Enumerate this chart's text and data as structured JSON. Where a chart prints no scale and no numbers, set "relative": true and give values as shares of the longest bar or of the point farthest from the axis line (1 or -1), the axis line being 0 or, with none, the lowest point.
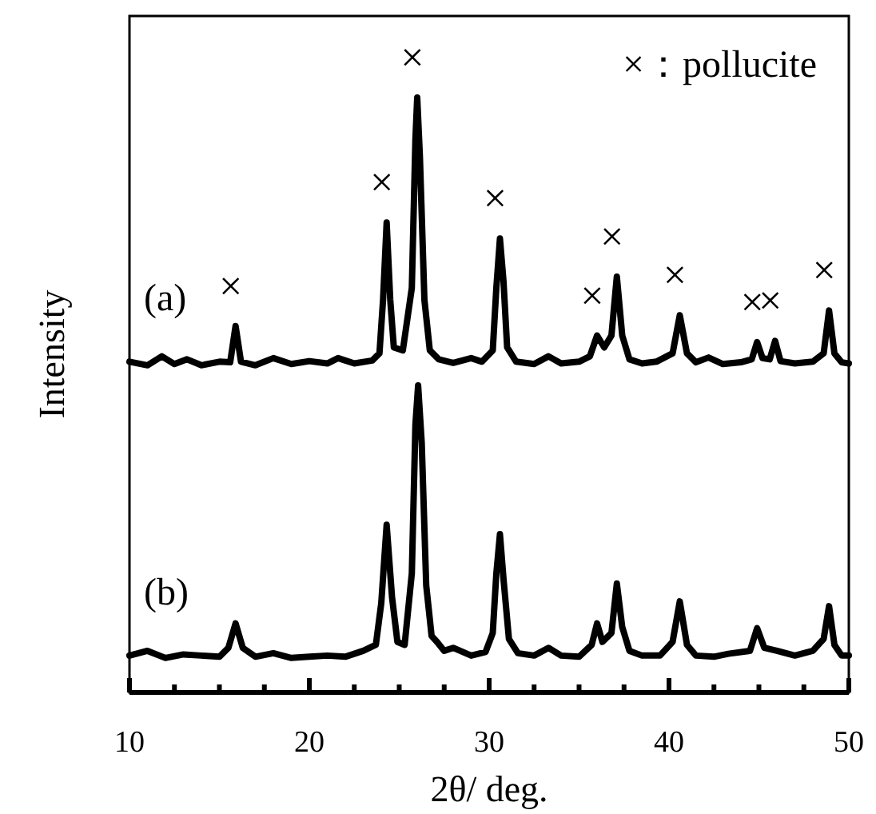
{
  "chart_data": {
    "type": "line",
    "relative": true,
    "xlabel": "2θ/ deg.",
    "ylabel": "Intensity",
    "xlim": [
      10,
      50
    ],
    "xticks": [
      10,
      {
        "value": 12.5,
        "label": null
      },
      {
        "value": 15,
        "label": null
      },
      {
        "value": 17.5,
        "label": null
      },
      20,
      {
        "value": 22.5,
        "label": null
      },
      {
        "value": 25,
        "label": null
      },
      {
        "value": 27.5,
        "label": null
      },
      30,
      {
        "value": 32.5,
        "label": null
      },
      {
        "value": 35,
        "label": null
      },
      {
        "value": 37.5,
        "label": null
      },
      40,
      {
        "value": 42.5,
        "label": null
      },
      {
        "value": 45,
        "label": null
      },
      {
        "value": 47.5,
        "label": null
      },
      50
    ],
    "series": [
      {
        "name": "(a)",
        "color": "#000000",
        "x": [
          10,
          11,
          11.8,
          12.5,
          13.2,
          14,
          15,
          15.6,
          15.9,
          16.2,
          17,
          18,
          19,
          20,
          21,
          21.6,
          22.5,
          23.5,
          23.9,
          24.1,
          24.3,
          24.5,
          24.7,
          25.2,
          25.7,
          25.9,
          26.0,
          26.15,
          26.4,
          26.7,
          27.2,
          28,
          29,
          29.6,
          30.2,
          30.4,
          30.6,
          30.8,
          31.0,
          31.5,
          32.5,
          33.3,
          34,
          35,
          35.6,
          36.0,
          36.4,
          36.8,
          37.1,
          37.4,
          37.8,
          38.5,
          39.3,
          40.2,
          40.6,
          41.0,
          41.5,
          42.2,
          43,
          44,
          44.6,
          44.9,
          45.2,
          45.6,
          45.9,
          46.2,
          47,
          48,
          48.6,
          48.9,
          49.2,
          49.6,
          50
        ],
        "values": [
          0.556,
          0.55,
          0.565,
          0.552,
          0.56,
          0.55,
          0.556,
          0.555,
          0.616,
          0.556,
          0.55,
          0.562,
          0.552,
          0.557,
          0.553,
          0.562,
          0.553,
          0.558,
          0.57,
          0.66,
          0.79,
          0.66,
          0.58,
          0.575,
          0.68,
          0.93,
          1.0,
          0.9,
          0.66,
          0.575,
          0.56,
          0.554,
          0.562,
          0.556,
          0.575,
          0.68,
          0.763,
          0.69,
          0.58,
          0.556,
          0.552,
          0.565,
          0.553,
          0.556,
          0.565,
          0.6,
          0.58,
          0.6,
          0.699,
          0.6,
          0.56,
          0.553,
          0.556,
          0.57,
          0.634,
          0.57,
          0.555,
          0.563,
          0.552,
          0.555,
          0.56,
          0.589,
          0.562,
          0.56,
          0.591,
          0.557,
          0.553,
          0.556,
          0.57,
          0.642,
          0.57,
          0.555,
          0.553
        ]
      },
      {
        "name": "(b)",
        "color": "#000000",
        "x": [
          10,
          11,
          12,
          13,
          14,
          15,
          15.5,
          15.9,
          16.3,
          17,
          18,
          19,
          20,
          21,
          22,
          23,
          23.7,
          24.0,
          24.3,
          24.6,
          24.9,
          25.3,
          25.7,
          25.9,
          26.05,
          26.25,
          26.5,
          26.8,
          27.1,
          27.5,
          28,
          29,
          29.8,
          30.2,
          30.4,
          30.6,
          30.8,
          31.1,
          31.6,
          32.5,
          33.3,
          34,
          35,
          35.7,
          36.0,
          36.3,
          36.8,
          37.1,
          37.4,
          37.8,
          38.5,
          39.5,
          40.2,
          40.6,
          41.0,
          41.5,
          42.5,
          43.3,
          44.5,
          44.9,
          45.3,
          46,
          47,
          48,
          48.6,
          48.9,
          49.2,
          49.6,
          50
        ],
        "values": [
          0.062,
          0.07,
          0.058,
          0.064,
          0.062,
          0.06,
          0.075,
          0.116,
          0.075,
          0.06,
          0.066,
          0.058,
          0.06,
          0.062,
          0.06,
          0.07,
          0.08,
          0.15,
          0.282,
          0.16,
          0.085,
          0.08,
          0.2,
          0.45,
          0.516,
          0.42,
          0.18,
          0.095,
          0.085,
          0.07,
          0.075,
          0.062,
          0.068,
          0.1,
          0.2,
          0.266,
          0.19,
          0.09,
          0.066,
          0.062,
          0.075,
          0.062,
          0.06,
          0.08,
          0.116,
          0.085,
          0.1,
          0.183,
          0.11,
          0.07,
          0.062,
          0.062,
          0.085,
          0.153,
          0.08,
          0.062,
          0.06,
          0.065,
          0.07,
          0.108,
          0.075,
          0.07,
          0.062,
          0.07,
          0.09,
          0.145,
          0.08,
          0.062,
          0.062
        ]
      }
    ],
    "annotations": [
      "×：pollucite",
      {
        "text": "×",
        "x": 15.9,
        "y": 0.616
      },
      {
        "text": "×",
        "x": 24.3,
        "y": 0.79
      },
      {
        "text": "×",
        "x": 26.0,
        "y": 1.0
      },
      {
        "text": "×",
        "x": 30.6,
        "y": 0.763
      },
      {
        "text": "×",
        "x": 36.0,
        "y": 0.6
      },
      {
        "text": "×",
        "x": 37.1,
        "y": 0.699
      },
      {
        "text": "×",
        "x": 40.6,
        "y": 0.634
      },
      {
        "text": "×",
        "x": 44.9,
        "y": 0.589
      },
      {
        "text": "×",
        "x": 45.9,
        "y": 0.591
      },
      {
        "text": "×",
        "x": 48.9,
        "y": 0.642
      }
    ]
  }
}
